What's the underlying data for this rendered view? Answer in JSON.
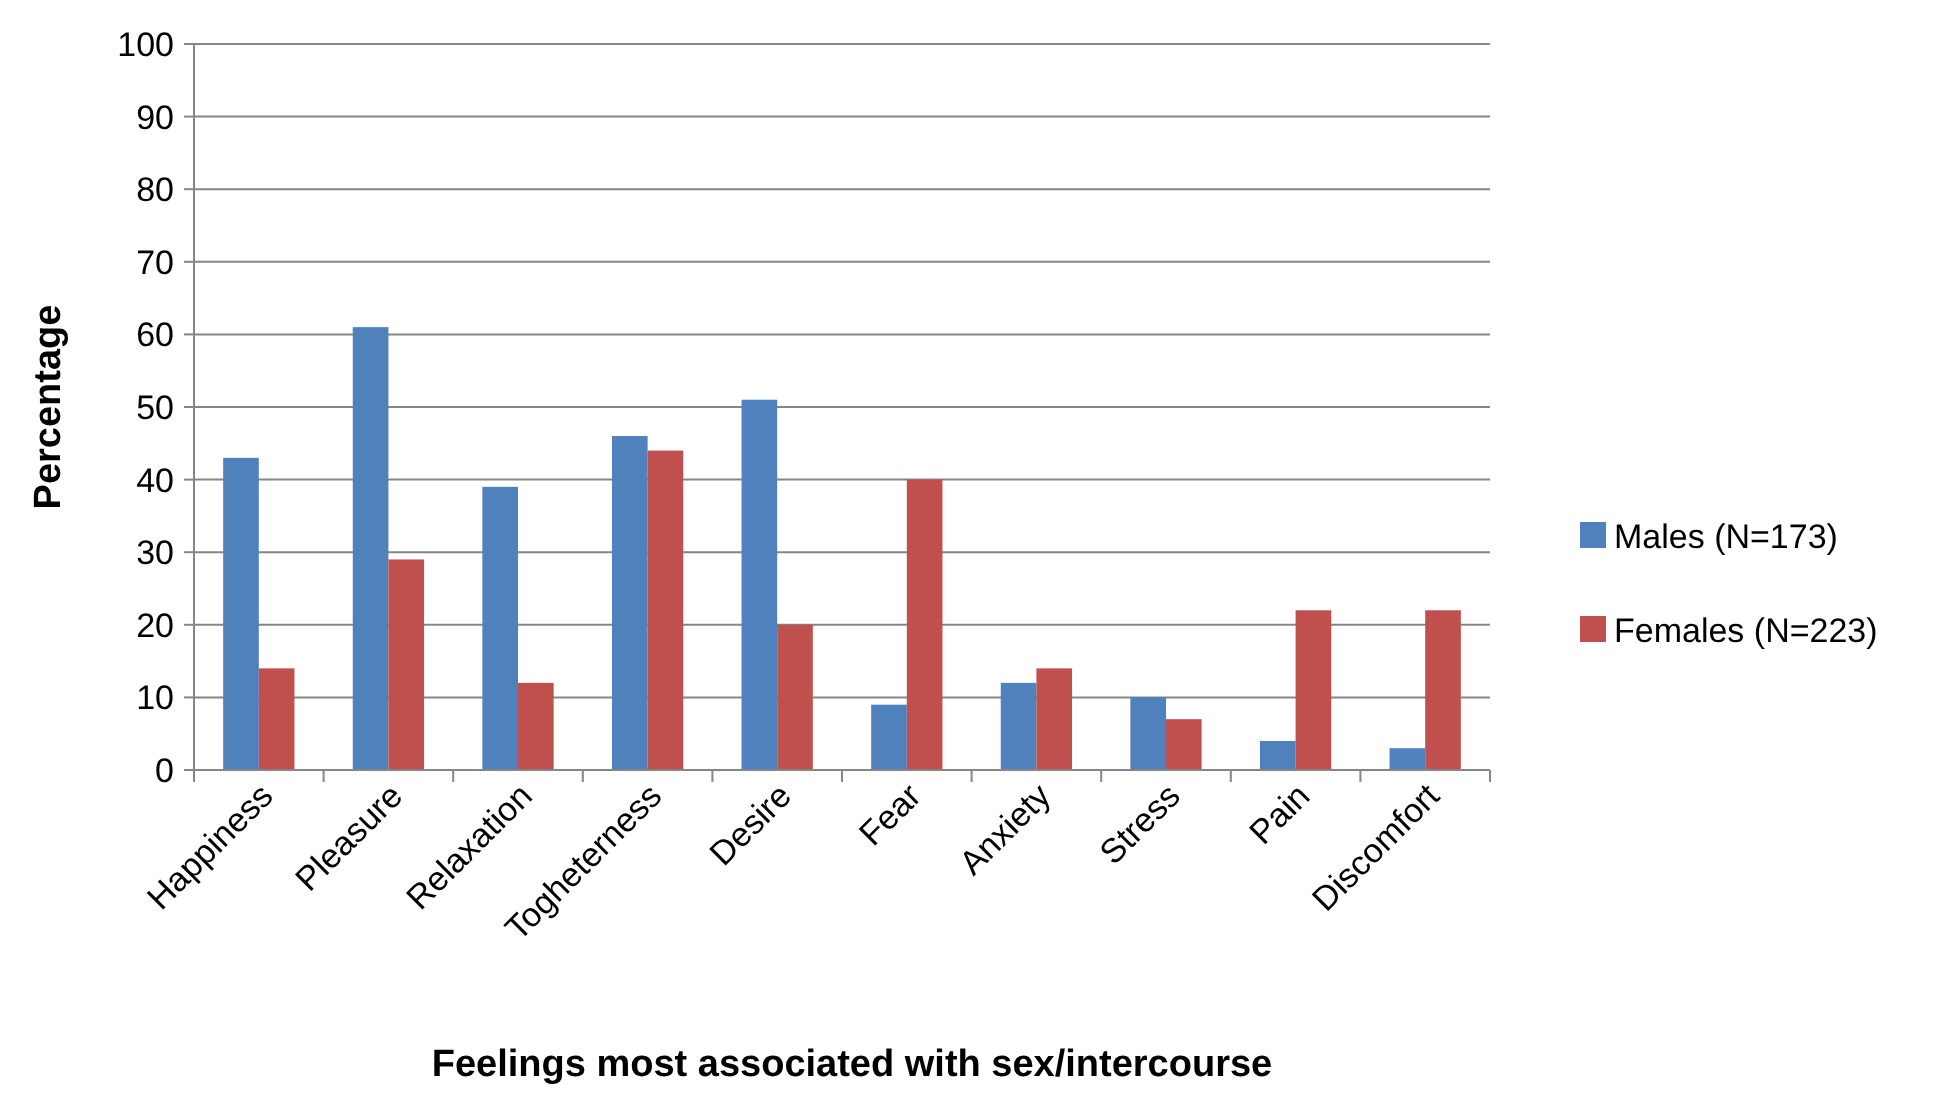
{
  "chart_data": {
    "type": "bar",
    "xlabel": "Feelings most associated with sex/intercourse",
    "ylabel": "Percentage",
    "categories": [
      "Happiness",
      "Pleasure",
      "Relaxation",
      "Togheterness",
      "Desire",
      "Fear",
      "Anxiety",
      "Stress",
      "Pain",
      "Discomfort"
    ],
    "series": [
      {
        "name": "Males (N=173)",
        "color": "#4f81bd",
        "values": [
          43,
          61,
          39,
          46,
          51,
          9,
          12,
          10,
          4,
          3
        ]
      },
      {
        "name": "Females (N=223)",
        "color": "#c0504d",
        "values": [
          14,
          29,
          12,
          44,
          20,
          40,
          14,
          7,
          22,
          22
        ]
      }
    ],
    "ylim": [
      0,
      100
    ],
    "yticks": [
      0,
      10,
      20,
      30,
      40,
      50,
      60,
      70,
      80,
      90,
      100
    ],
    "grid": "y",
    "legend": "right"
  }
}
